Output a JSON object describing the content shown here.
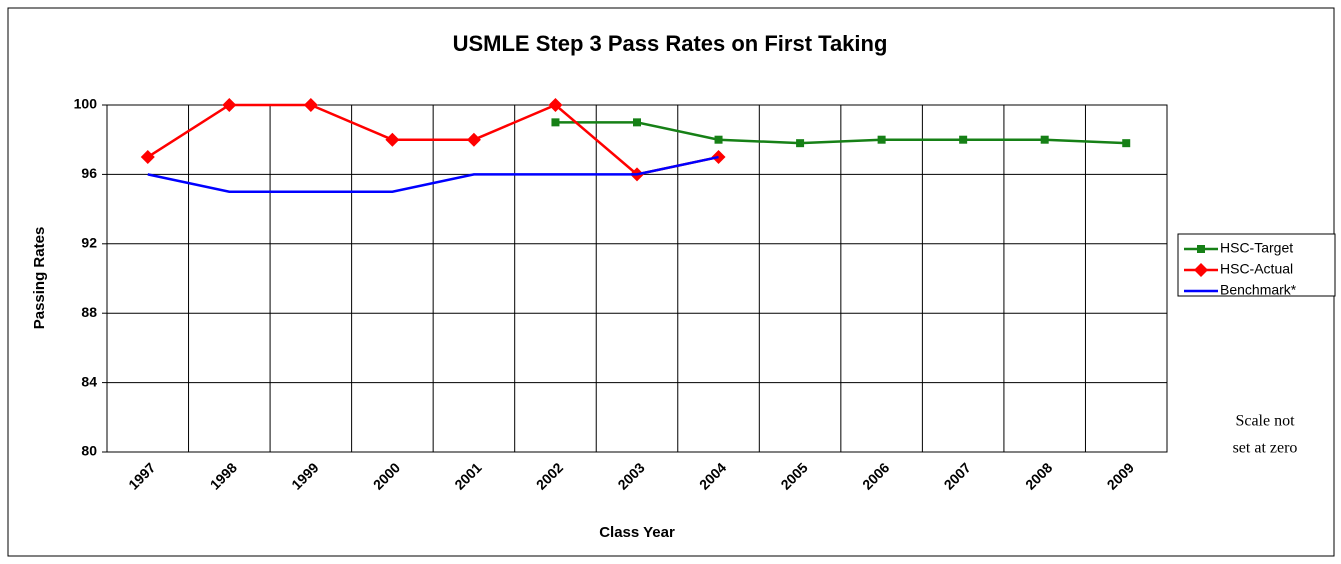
{
  "chart_data": {
    "type": "line",
    "title": "USMLE Step 3 Pass Rates on First Taking",
    "x_label": "Class Year",
    "y_label": "Passing Rates",
    "categories": [
      "1997",
      "1998",
      "1999",
      "2000",
      "2001",
      "2002",
      "2003",
      "2004",
      "2005",
      "2006",
      "2007",
      "2008",
      "2009"
    ],
    "series": [
      {
        "name": "HSC-Target",
        "color": "#168016",
        "marker": "square",
        "values": [
          null,
          null,
          null,
          null,
          null,
          99,
          99,
          98,
          97.8,
          98,
          98,
          98,
          97.8
        ]
      },
      {
        "name": "HSC-Actual",
        "color": "#ff0000",
        "marker": "diamond",
        "values": [
          97,
          100,
          100,
          98,
          98,
          100,
          96,
          97,
          null,
          null,
          null,
          null,
          null
        ]
      },
      {
        "name": "Benchmark*",
        "color": "#0000ff",
        "marker": "none",
        "values": [
          96,
          95,
          95,
          95,
          96,
          96,
          96,
          97,
          null,
          null,
          null,
          null,
          null
        ]
      }
    ],
    "ylim": [
      80,
      100
    ],
    "yticks": [
      80,
      84,
      88,
      92,
      96,
      100
    ],
    "grid": true,
    "legend": "right",
    "annotation": [
      "Scale not",
      "set at zero"
    ]
  }
}
